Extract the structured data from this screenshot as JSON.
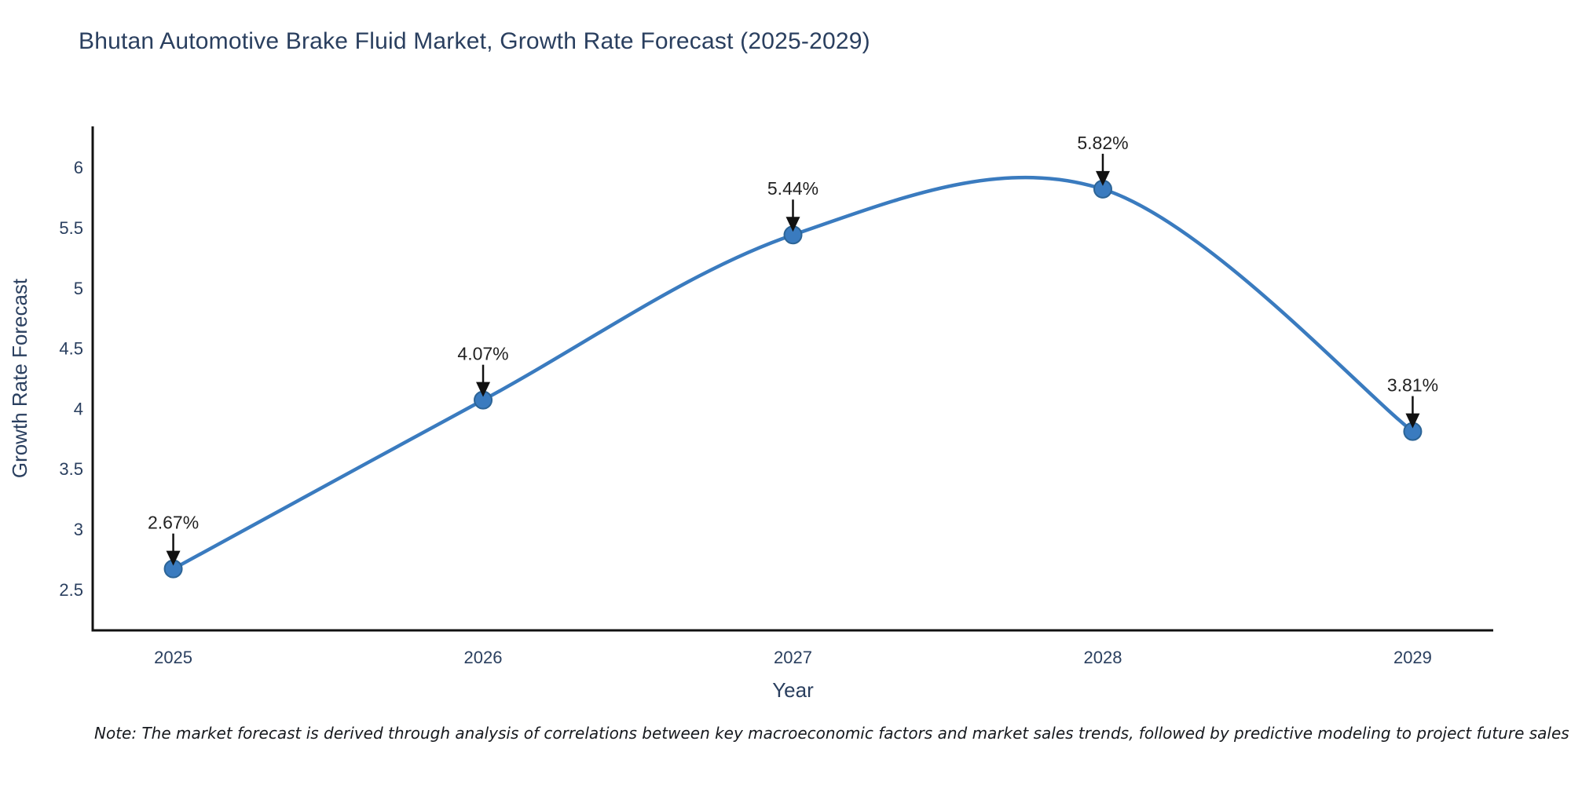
{
  "title": "Bhutan Automotive Brake Fluid Market, Growth Rate Forecast (2025-2029)",
  "note": "Note: The market forecast is derived through analysis of correlations between key macroeconomic factors and market sales trends, followed by predictive modeling to project future sales",
  "chart_data": {
    "type": "line",
    "title": "Bhutan Automotive Brake Fluid Market, Growth Rate Forecast (2025-2029)",
    "xlabel": "Year",
    "ylabel": "Growth Rate Forecast",
    "x": [
      2025,
      2026,
      2027,
      2028,
      2029
    ],
    "y": [
      2.67,
      4.07,
      5.44,
      5.82,
      3.81
    ],
    "point_labels": [
      "2.67%",
      "4.07%",
      "5.44%",
      "5.82%",
      "3.81%"
    ],
    "x_tick_labels": [
      "2025",
      "2026",
      "2027",
      "2028",
      "2029"
    ],
    "y_tick_values": [
      2.5,
      3,
      3.5,
      4,
      4.5,
      5,
      5.5,
      6
    ],
    "y_tick_labels": [
      "2.5",
      "3",
      "3.5",
      "4",
      "4.5",
      "5",
      "5.5",
      "6"
    ],
    "xlim": [
      2024.74,
      2029.26
    ],
    "ylim": [
      2.16,
      6.34
    ],
    "grid": false,
    "legend": "none",
    "line_shape": "spline",
    "colors": {
      "line": "#3a7bbf",
      "marker_fill": "#3a7bbf",
      "marker_edge": "#2c6496",
      "axis_line": "#111111",
      "tick_text": "#2a3f5f",
      "axis_title_text": "#2a3f5f",
      "annotation_text": "#222222",
      "annotation_arrow": "#111111"
    }
  }
}
